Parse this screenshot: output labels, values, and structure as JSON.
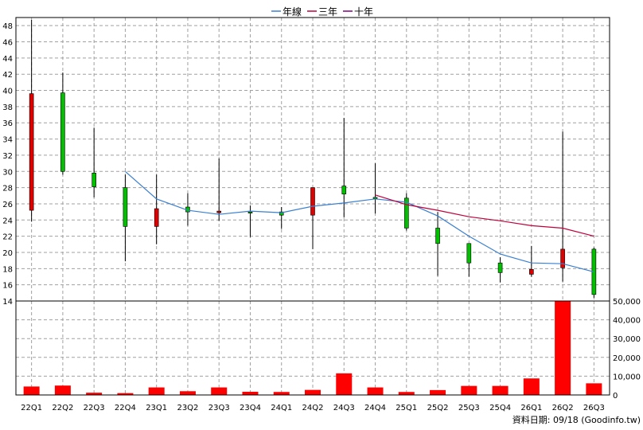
{
  "legend": [
    {
      "label": "年線",
      "color": "#3a7fd0"
    },
    {
      "label": "三年",
      "color": "#c0003c"
    },
    {
      "label": "十年",
      "color": "#800080"
    }
  ],
  "source_note": "資料日期: 09/18  (Goodinfo.tw)",
  "colors": {
    "up": "#00c000",
    "down": "#e00000",
    "volume": "#ff0000",
    "wick": "#000000"
  },
  "chart_data": [
    {
      "type": "candlestick",
      "categories": [
        "22Q1",
        "22Q2",
        "22Q3",
        "22Q4",
        "23Q1",
        "23Q2",
        "23Q3",
        "23Q4",
        "24Q1",
        "24Q2",
        "24Q3",
        "24Q4",
        "25Q1",
        "25Q2",
        "25Q3",
        "25Q4",
        "26Q1",
        "26Q2",
        "26Q3"
      ],
      "ylim": [
        14,
        49
      ],
      "yticks": [
        14,
        16,
        18,
        20,
        22,
        24,
        26,
        28,
        30,
        32,
        34,
        36,
        38,
        40,
        42,
        44,
        46,
        48
      ],
      "candles": [
        {
          "open": 39.6,
          "high": 48.7,
          "low": 23.8,
          "close": 25.2,
          "dir": "down"
        },
        {
          "open": 30.0,
          "high": 42.2,
          "low": 29.6,
          "close": 39.7,
          "dir": "up"
        },
        {
          "open": 28.1,
          "high": 35.4,
          "low": 26.8,
          "close": 29.8,
          "dir": "up"
        },
        {
          "open": 23.2,
          "high": 29.6,
          "low": 18.9,
          "close": 28.0,
          "dir": "up"
        },
        {
          "open": 25.4,
          "high": 29.6,
          "low": 21.0,
          "close": 23.2,
          "dir": "down"
        },
        {
          "open": 25.0,
          "high": 27.3,
          "low": 23.3,
          "close": 25.6,
          "dir": "up"
        },
        {
          "open": 24.9,
          "high": 31.6,
          "low": 23.9,
          "close": 25.1,
          "dir": "down"
        },
        {
          "open": 25.0,
          "high": 25.8,
          "low": 21.9,
          "close": 25.0,
          "dir": "up"
        },
        {
          "open": 24.6,
          "high": 25.6,
          "low": 22.9,
          "close": 25.0,
          "dir": "up"
        },
        {
          "open": 28.0,
          "high": 28.0,
          "low": 20.4,
          "close": 24.6,
          "dir": "down"
        },
        {
          "open": 27.2,
          "high": 36.6,
          "low": 24.3,
          "close": 28.2,
          "dir": "up"
        },
        {
          "open": 26.7,
          "high": 31.0,
          "low": 24.8,
          "close": 26.8,
          "dir": "up"
        },
        {
          "open": 23.0,
          "high": 27.3,
          "low": 22.7,
          "close": 26.7,
          "dir": "up"
        },
        {
          "open": 21.1,
          "high": 25.0,
          "low": 17.1,
          "close": 23.0,
          "dir": "up"
        },
        {
          "open": 18.7,
          "high": 21.0,
          "low": 17.0,
          "close": 21.1,
          "dir": "up"
        },
        {
          "open": 17.5,
          "high": 19.4,
          "low": 16.3,
          "close": 18.7,
          "dir": "up"
        },
        {
          "open": 17.9,
          "high": 20.8,
          "low": 17.0,
          "close": 17.3,
          "dir": "down"
        },
        {
          "open": 20.4,
          "high": 34.9,
          "low": 16.4,
          "close": 18.1,
          "dir": "down"
        },
        {
          "open": 14.8,
          "high": 20.6,
          "low": 14.4,
          "close": 20.4,
          "dir": "up"
        }
      ],
      "lines": [
        {
          "name": "年線",
          "color": "#3a7fd0",
          "start_index": 3,
          "values": [
            30.0,
            26.6,
            25.2,
            24.7,
            25.1,
            24.9,
            25.7,
            26.1,
            26.6,
            26.2,
            24.5,
            22.0,
            19.8,
            18.7,
            18.6,
            17.6
          ]
        },
        {
          "name": "三年",
          "color": "#c0003c",
          "start_index": 11,
          "values": [
            27.1,
            25.9,
            25.2,
            24.4,
            23.9,
            23.3,
            23.0,
            22.0
          ]
        }
      ]
    },
    {
      "type": "bar",
      "categories": [
        "22Q1",
        "22Q2",
        "22Q3",
        "22Q4",
        "23Q1",
        "23Q2",
        "23Q3",
        "23Q4",
        "24Q1",
        "24Q2",
        "24Q3",
        "24Q4",
        "25Q1",
        "25Q2",
        "25Q3",
        "25Q4",
        "26Q1",
        "26Q2",
        "26Q3"
      ],
      "values": [
        4500,
        5000,
        1200,
        1000,
        4000,
        2000,
        4000,
        1700,
        1600,
        2700,
        11500,
        4000,
        1600,
        2600,
        4800,
        4800,
        8800,
        50000,
        6200
      ],
      "ylim": [
        0,
        50000
      ],
      "yticks": [
        0,
        10000,
        20000,
        30000,
        40000,
        50000
      ],
      "ytick_labels": [
        "0",
        "10,000",
        "20,000",
        "30,000",
        "40,000",
        "50,000"
      ]
    }
  ]
}
